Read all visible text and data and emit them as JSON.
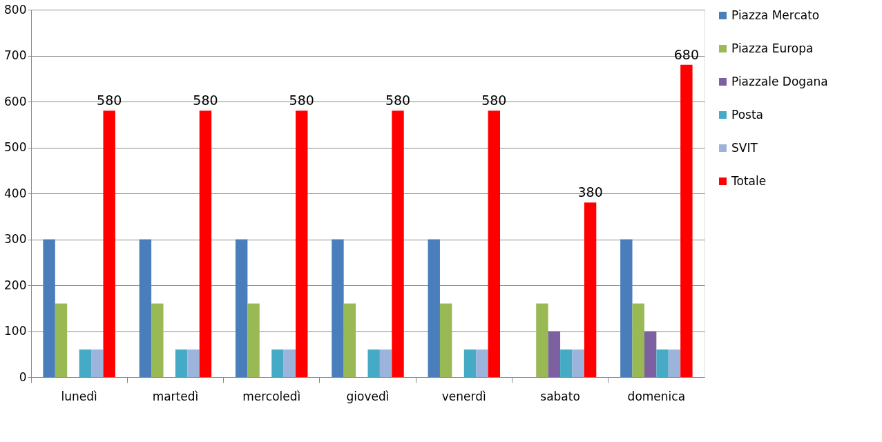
{
  "chart_data": {
    "type": "bar",
    "categories": [
      "lunedì",
      "martedì",
      "mercoledì",
      "giovedì",
      "venerdì",
      "sabato",
      "domenica"
    ],
    "series": [
      {
        "name": "Piazza Mercato",
        "color": "#4a7ebb",
        "values": [
          300,
          300,
          300,
          300,
          300,
          null,
          300
        ]
      },
      {
        "name": "Piazza Europa",
        "color": "#98b954",
        "values": [
          160,
          160,
          160,
          160,
          160,
          160,
          160
        ]
      },
      {
        "name": "Piazzale Dogana",
        "color": "#7d60a0",
        "values": [
          null,
          null,
          null,
          null,
          null,
          100,
          100
        ]
      },
      {
        "name": "Posta",
        "color": "#46aac5",
        "values": [
          60,
          60,
          60,
          60,
          60,
          60,
          60
        ]
      },
      {
        "name": "SVIT",
        "color": "#9cb4dc",
        "values": [
          60,
          60,
          60,
          60,
          60,
          60,
          60
        ]
      },
      {
        "name": "Totale",
        "color": "#ff0000",
        "values": [
          580,
          580,
          580,
          580,
          580,
          380,
          680
        ],
        "value_labels": [
          "580",
          "580",
          "580",
          "580",
          "580",
          "380",
          "680"
        ]
      }
    ],
    "ylim": [
      0,
      800
    ],
    "yticks": [
      0,
      100,
      200,
      300,
      400,
      500,
      600,
      700,
      800
    ],
    "grid": "y",
    "legend": "right"
  }
}
